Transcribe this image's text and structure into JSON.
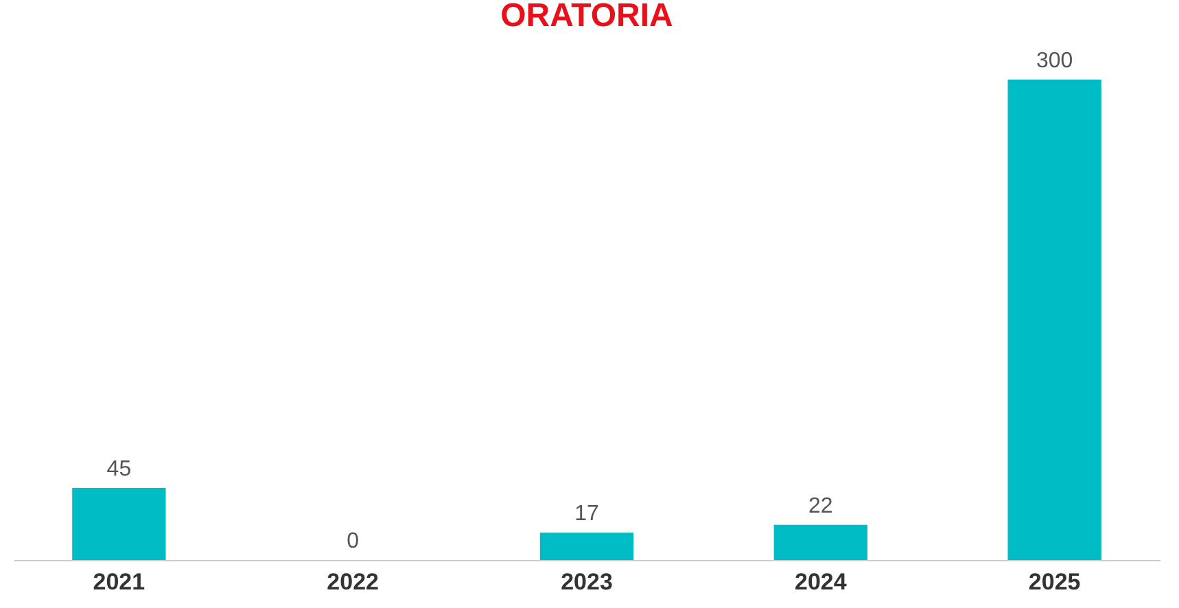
{
  "chart_data": {
    "type": "bar",
    "title": "ORATORIA",
    "categories": [
      "2021",
      "2022",
      "2023",
      "2024",
      "2025"
    ],
    "values": [
      45,
      0,
      17,
      22,
      300
    ],
    "color": "#00bcc4",
    "data_labels": true
  }
}
